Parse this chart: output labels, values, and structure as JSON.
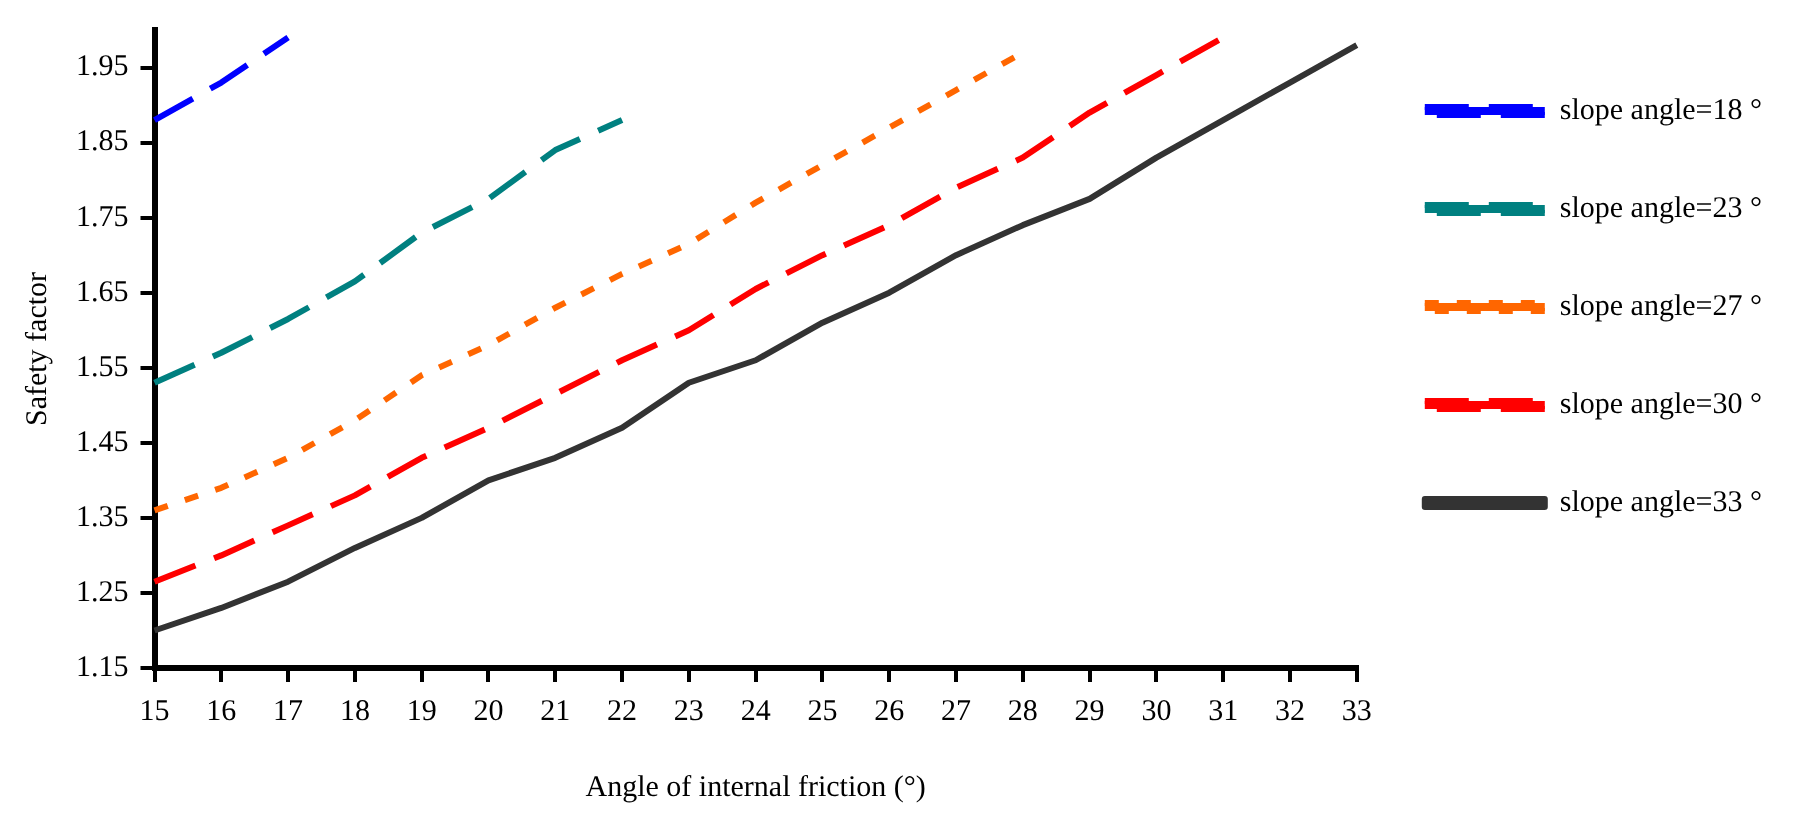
{
  "chart_data": {
    "type": "line",
    "xlabel": "Angle of internal friction (°)",
    "ylabel": "Safety factor",
    "categories": [
      "15",
      "16",
      "17",
      "18",
      "19",
      "20",
      "21",
      "22",
      "23",
      "24",
      "25",
      "26",
      "27",
      "28",
      "29",
      "30",
      "31",
      "32",
      "33"
    ],
    "ylim": [
      1.15,
      2.0
    ],
    "yticks": [
      1.15,
      1.25,
      1.35,
      1.45,
      1.55,
      1.65,
      1.75,
      1.85,
      1.95
    ],
    "grid": false,
    "legend": "right",
    "marker": "none",
    "series": [
      {
        "name": "slope angle=18 °",
        "color": "#0000ff",
        "line_style": "dashed",
        "values": [
          1.88,
          1.93,
          1.99,
          null,
          null,
          null,
          null,
          null,
          null,
          null,
          null,
          null,
          null,
          null,
          null,
          null,
          null,
          null,
          null
        ]
      },
      {
        "name": "slope angle=23 °",
        "color": "#008080",
        "line_style": "dashed",
        "values": [
          1.53,
          1.57,
          1.615,
          1.665,
          1.73,
          1.775,
          1.84,
          1.88,
          null,
          null,
          null,
          null,
          null,
          null,
          null,
          null,
          null,
          null,
          null
        ]
      },
      {
        "name": "slope angle=27 °",
        "color": "#ff6600",
        "line_style": "dotted",
        "values": [
          1.36,
          1.39,
          1.43,
          1.48,
          1.54,
          1.58,
          1.63,
          1.675,
          1.715,
          1.77,
          1.82,
          1.87,
          1.92,
          1.97,
          null,
          null,
          null,
          null,
          null
        ]
      },
      {
        "name": "slope angle=30 °",
        "color": "#ff0000",
        "line_style": "dashed",
        "values": [
          1.265,
          1.3,
          1.34,
          1.38,
          1.43,
          1.47,
          1.515,
          1.56,
          1.6,
          1.655,
          1.7,
          1.74,
          1.79,
          1.83,
          1.89,
          1.94,
          1.99,
          null,
          null
        ]
      },
      {
        "name": "slope angle=33 °",
        "color": "#333333",
        "line_style": "solid",
        "values": [
          1.2,
          1.23,
          1.265,
          1.31,
          1.35,
          1.4,
          1.43,
          1.47,
          1.53,
          1.56,
          1.61,
          1.65,
          1.7,
          1.74,
          1.775,
          1.83,
          1.88,
          1.93,
          1.98
        ]
      }
    ]
  }
}
